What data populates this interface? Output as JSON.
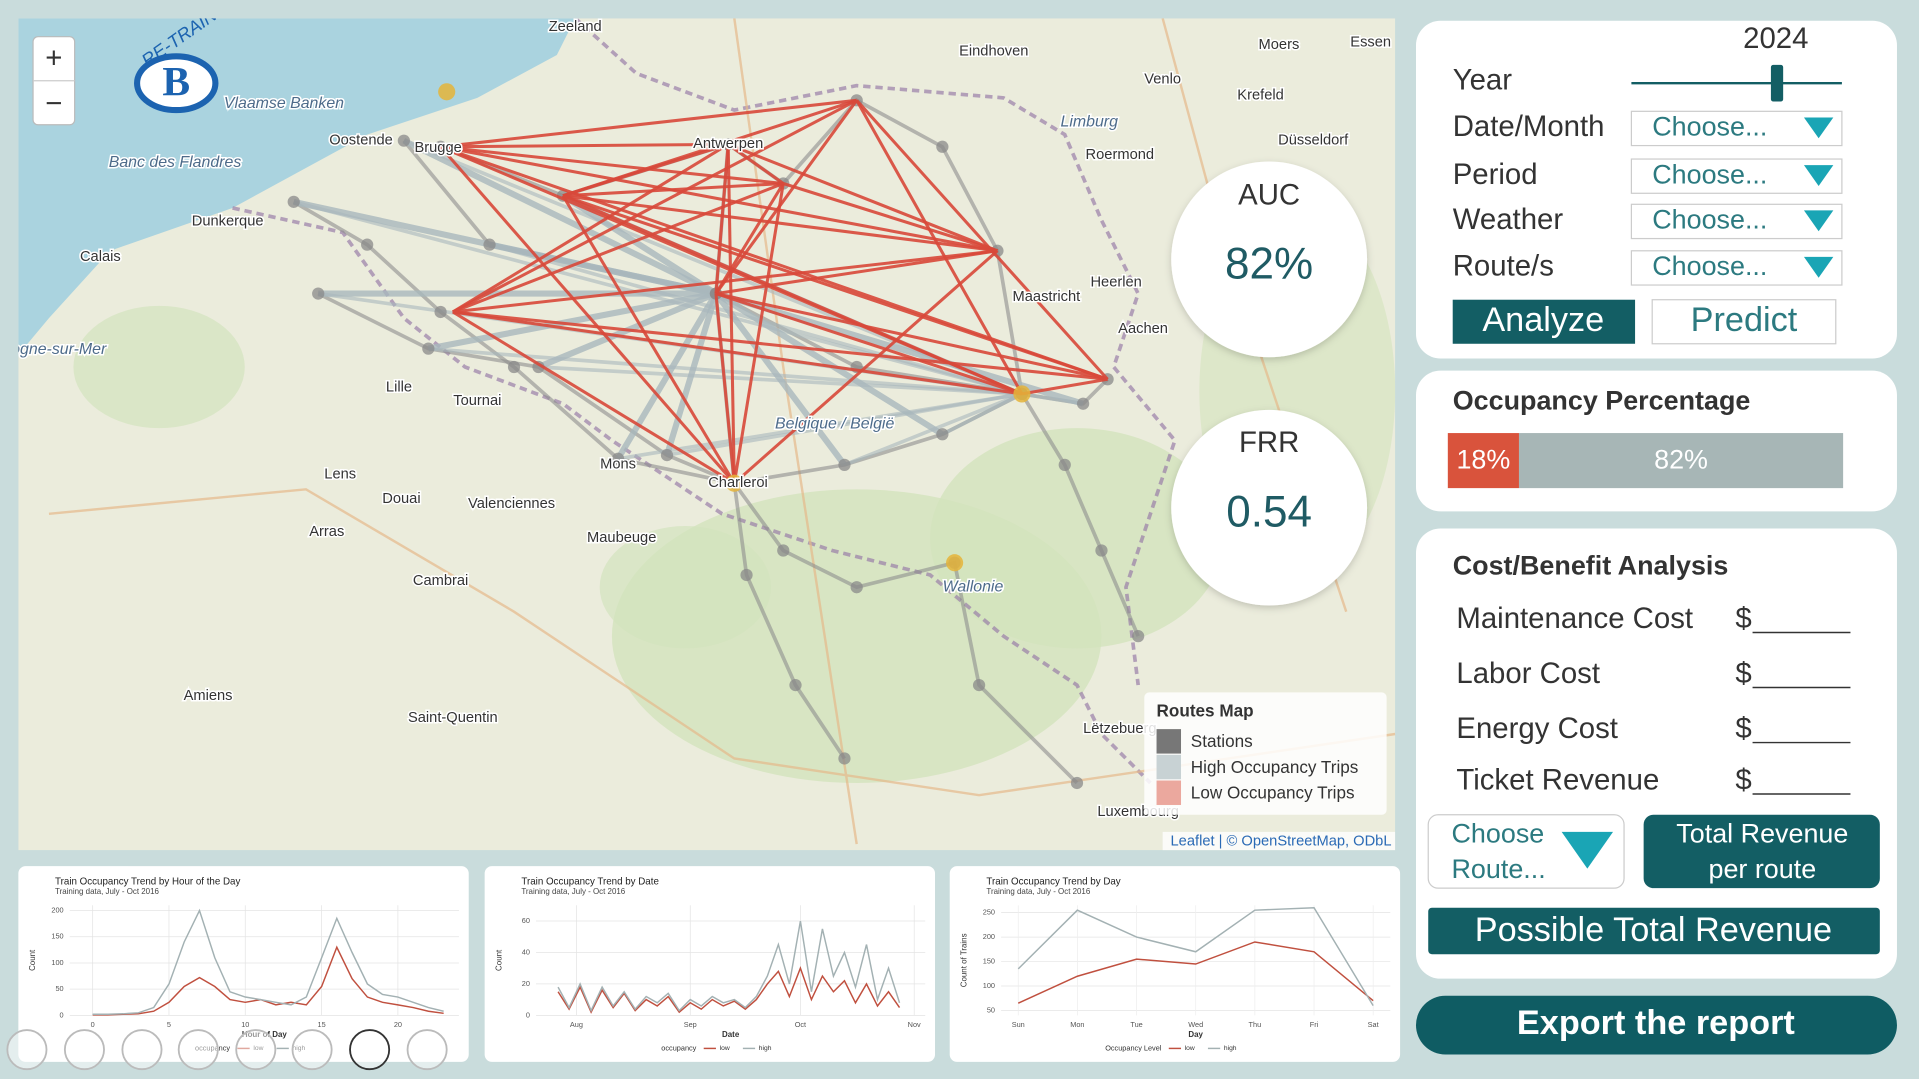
{
  "map": {
    "zoom_in": "+",
    "zoom_out": "−",
    "logo_letter": "B",
    "logo_text": "RE-TRAIN",
    "labels": [
      "Zeeland",
      "Eindhoven",
      "Venlo",
      "Moers",
      "Essen",
      "Krefeld",
      "Antwerpen",
      "Oostende",
      "Brugge",
      "Dunkerque",
      "Calais",
      "Lille",
      "Tournai",
      "Mons",
      "Charleroi",
      "Maastricht",
      "Heerlen",
      "Aachen",
      "Roermond",
      "Düsseldorf",
      "Limburg",
      "Belgique / België",
      "Wallonie",
      "Maubeuge",
      "Valenciennes",
      "Douai",
      "Arras",
      "Lens",
      "Cambrai",
      "Amiens",
      "Saint-Quentin",
      "Lëtzebuerg",
      "Luxembourg",
      "Vlaamse Banken",
      "Banc des Flandres",
      "Boulogne-sur-Mer"
    ],
    "legend": {
      "title": "Routes Map",
      "items": [
        "Stations",
        "High Occupancy Trips",
        "Low Occupancy Trips"
      ]
    },
    "attribution": "Leaflet | © OpenStreetMap, ODbL"
  },
  "metrics": [
    {
      "label": "AUC",
      "value": "82%"
    },
    {
      "label": "FRR",
      "value": "0.54"
    }
  ],
  "filters": {
    "year_label": "Year",
    "year_value": "2024",
    "fields": [
      {
        "label": "Date/Month",
        "placeholder": "Choose..."
      },
      {
        "label": "Period",
        "placeholder": "Choose..."
      },
      {
        "label": "Weather",
        "placeholder": "Choose..."
      },
      {
        "label": "Route/s",
        "placeholder": "Choose..."
      }
    ],
    "buttons": [
      "Analyze",
      "Predict"
    ]
  },
  "occupancy": {
    "title": "Occupancy Percentage",
    "segments": [
      {
        "value": 18,
        "label": "18%",
        "color": "#d9533c"
      },
      {
        "value": 82,
        "label": "82%",
        "color": "#a7b6b6"
      }
    ]
  },
  "cost_benefit": {
    "title": "Cost/Benefit Analysis",
    "rows": [
      {
        "label": "Maintenance Cost",
        "currency": "$"
      },
      {
        "label": "Labor Cost",
        "currency": "$"
      },
      {
        "label": "Energy Cost",
        "currency": "$"
      },
      {
        "label": "Ticket Revenue",
        "currency": "$"
      }
    ],
    "route_select": [
      "Choose",
      "Route..."
    ],
    "route_button": [
      "Total Revenue",
      "per route"
    ],
    "total_button": "Possible Total Revenue"
  },
  "export_button": "Export the report",
  "chart_data": [
    {
      "type": "line",
      "title": "Train Occupancy Trend by Hour of the Day",
      "subtitle": "Training data, July - Oct 2016",
      "x_label": "Hour of Day",
      "y_label": "Count",
      "legend_title": "occupancy",
      "x": [
        0,
        1,
        2,
        3,
        4,
        5,
        6,
        7,
        8,
        9,
        10,
        11,
        12,
        13,
        14,
        15,
        16,
        17,
        18,
        19,
        20,
        21,
        22,
        23
      ],
      "series": [
        {
          "name": "low",
          "color": "#c0503f",
          "values": [
            1,
            1,
            2,
            3,
            8,
            25,
            55,
            72,
            55,
            30,
            25,
            30,
            20,
            25,
            20,
            55,
            130,
            70,
            35,
            25,
            20,
            15,
            8,
            4
          ]
        },
        {
          "name": "high",
          "color": "#a3b1b3",
          "values": [
            2,
            2,
            3,
            5,
            15,
            60,
            140,
            200,
            110,
            45,
            35,
            30,
            25,
            20,
            35,
            110,
            185,
            120,
            60,
            40,
            35,
            25,
            15,
            8
          ]
        }
      ],
      "xlim": [
        -1.5,
        24
      ],
      "ylim": [
        0,
        210
      ],
      "xticks": [
        0,
        5,
        10,
        15,
        20
      ],
      "yticks": [
        0,
        50,
        100,
        150,
        200
      ],
      "grid": true
    },
    {
      "type": "line",
      "title": "Train Occupancy Trend by Date",
      "subtitle": "Training data, July - Oct 2016",
      "x_label": "Date",
      "y_label": "Count",
      "legend_title": "occupancy",
      "x": [
        26,
        29,
        32,
        35,
        38,
        41,
        44,
        47,
        50,
        53,
        56,
        59,
        62,
        65,
        68,
        71,
        74,
        77,
        80,
        83,
        86,
        89,
        92,
        95,
        98,
        101,
        104,
        107,
        110,
        113,
        116,
        119
      ],
      "series": [
        {
          "name": "low",
          "color": "#c0503f",
          "values": [
            15,
            4,
            18,
            2,
            16,
            5,
            14,
            3,
            10,
            6,
            12,
            2,
            8,
            4,
            10,
            6,
            9,
            4,
            10,
            20,
            28,
            12,
            30,
            10,
            25,
            15,
            22,
            8,
            20,
            6,
            15,
            5
          ]
        },
        {
          "name": "high",
          "color": "#a3b1b3",
          "values": [
            18,
            5,
            20,
            3,
            18,
            6,
            15,
            4,
            12,
            8,
            14,
            3,
            10,
            6,
            12,
            8,
            10,
            5,
            12,
            25,
            45,
            20,
            60,
            15,
            55,
            25,
            40,
            18,
            45,
            10,
            30,
            8
          ]
        }
      ],
      "xlim": [
        20,
        126
      ],
      "ylim": [
        0,
        70
      ],
      "xticks": [
        {
          "value": 31,
          "label": "Aug"
        },
        {
          "value": 62,
          "label": "Sep"
        },
        {
          "value": 92,
          "label": "Oct"
        },
        {
          "value": 123,
          "label": "Nov"
        }
      ],
      "yticks": [
        0,
        20,
        40,
        60
      ],
      "grid": true
    },
    {
      "type": "line",
      "title": "Train Occupancy Trend by Day",
      "subtitle": "Training data, July - Oct 2016",
      "x_label": "Day",
      "y_label": "Count of Trains",
      "legend_title": "Occupancy Level",
      "categories": [
        "Sun",
        "Mon",
        "Tue",
        "Wed",
        "Thu",
        "Fri",
        "Sat"
      ],
      "series": [
        {
          "name": "low",
          "color": "#c0503f",
          "values": [
            65,
            120,
            155,
            145,
            190,
            170,
            70
          ]
        },
        {
          "name": "high",
          "color": "#a3b1b3",
          "values": [
            135,
            255,
            200,
            170,
            255,
            260,
            60
          ]
        }
      ],
      "ylim": [
        40,
        265
      ],
      "yticks": [
        50,
        100,
        150,
        200,
        250
      ],
      "grid": true
    }
  ]
}
